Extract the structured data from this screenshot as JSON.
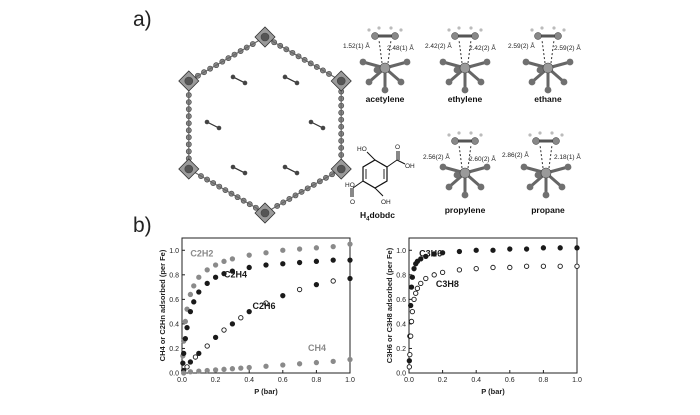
{
  "panel_a": {
    "label": "a)",
    "structures": [
      {
        "name": "acetylene",
        "d1": "1.52(1) Å",
        "d2": "2.48(1) Å"
      },
      {
        "name": "ethylene",
        "d1": "2.42(2) Å",
        "d2": "2.42(2) Å"
      },
      {
        "name": "ethane",
        "d1": "2.59(2) Å",
        "d2": "2.59(2) Å"
      },
      {
        "name": "propylene",
        "d1": "2.56(2) Å",
        "d2": "2.60(2) Å"
      },
      {
        "name": "propane",
        "d1": "2.86(2) Å",
        "d2": "2.18(1) Å"
      }
    ],
    "ligand": {
      "name": "H4dobdc",
      "OH": "HO",
      "OH2": "OH",
      "O": "O",
      "O2": "O"
    }
  },
  "panel_b": {
    "label": "b)"
  },
  "chart_data": [
    {
      "type": "scatter",
      "xlabel": "P (bar)",
      "ylabel": "CH4 or C2Hn adsorbed (per Fe)",
      "xlim": [
        0,
        1.0
      ],
      "ylim": [
        0,
        1.1
      ],
      "xticks": [
        "0.0",
        "0.2",
        "0.4",
        "0.6",
        "0.8",
        "1.0"
      ],
      "yticks": [
        "0.0",
        "0.2",
        "0.4",
        "0.6",
        "0.8",
        "1.0"
      ],
      "series": [
        {
          "name": "C2H2",
          "color": "#8a8a8a",
          "style": "filled",
          "x": [
            0.005,
            0.01,
            0.02,
            0.03,
            0.05,
            0.07,
            0.1,
            0.15,
            0.2,
            0.25,
            0.3,
            0.4,
            0.5,
            0.6,
            0.7,
            0.8,
            0.9,
            1.0
          ],
          "y": [
            0.14,
            0.26,
            0.42,
            0.52,
            0.64,
            0.71,
            0.78,
            0.84,
            0.88,
            0.91,
            0.93,
            0.96,
            0.98,
            1.0,
            1.01,
            1.02,
            1.03,
            1.05
          ]
        },
        {
          "name": "C2H4",
          "color": "#1a1a1a",
          "style": "filled",
          "x": [
            0.005,
            0.01,
            0.02,
            0.03,
            0.05,
            0.07,
            0.1,
            0.15,
            0.2,
            0.25,
            0.3,
            0.4,
            0.5,
            0.6,
            0.7,
            0.8,
            0.9,
            1.0
          ],
          "y": [
            0.08,
            0.16,
            0.28,
            0.37,
            0.5,
            0.58,
            0.66,
            0.73,
            0.78,
            0.81,
            0.83,
            0.86,
            0.88,
            0.89,
            0.9,
            0.91,
            0.92,
            0.92
          ]
        },
        {
          "name": "C2H6",
          "color": "#1a1a1a",
          "style": "mixed",
          "x": [
            0.01,
            0.03,
            0.05,
            0.08,
            0.1,
            0.15,
            0.2,
            0.25,
            0.3,
            0.35,
            0.4,
            0.5,
            0.6,
            0.7,
            0.8,
            0.9,
            1.0
          ],
          "y": [
            0.02,
            0.05,
            0.09,
            0.13,
            0.16,
            0.22,
            0.29,
            0.35,
            0.4,
            0.45,
            0.5,
            0.57,
            0.63,
            0.68,
            0.72,
            0.75,
            0.77
          ]
        },
        {
          "name": "CH4",
          "color": "#8a8a8a",
          "style": "filled",
          "x": [
            0.01,
            0.05,
            0.1,
            0.15,
            0.2,
            0.25,
            0.3,
            0.35,
            0.4,
            0.5,
            0.6,
            0.7,
            0.8,
            0.9,
            1.0
          ],
          "y": [
            0.0,
            0.01,
            0.015,
            0.02,
            0.025,
            0.03,
            0.035,
            0.04,
            0.045,
            0.055,
            0.065,
            0.075,
            0.085,
            0.095,
            0.11
          ]
        }
      ]
    },
    {
      "type": "scatter",
      "xlabel": "P (bar)",
      "ylabel": "C3H6 or C3H8 adsorbed (per Fe)",
      "xlim": [
        0,
        1.0
      ],
      "ylim": [
        0,
        1.1
      ],
      "xticks": [
        "0.0",
        "0.2",
        "0.4",
        "0.6",
        "0.8",
        "1.0"
      ],
      "yticks": [
        "0.0",
        "0.2",
        "0.4",
        "0.6",
        "0.8",
        "1.0"
      ],
      "series": [
        {
          "name": "C3H6",
          "color": "#1a1a1a",
          "style": "filled",
          "x": [
            0.002,
            0.005,
            0.01,
            0.015,
            0.02,
            0.03,
            0.04,
            0.05,
            0.07,
            0.1,
            0.15,
            0.2,
            0.3,
            0.4,
            0.5,
            0.6,
            0.7,
            0.8,
            0.9,
            1.0
          ],
          "y": [
            0.1,
            0.3,
            0.55,
            0.7,
            0.78,
            0.85,
            0.89,
            0.91,
            0.93,
            0.95,
            0.97,
            0.98,
            0.99,
            1.0,
            1.0,
            1.01,
            1.01,
            1.02,
            1.02,
            1.02
          ]
        },
        {
          "name": "C3H8",
          "color": "#1a1a1a",
          "style": "open",
          "x": [
            0.002,
            0.005,
            0.01,
            0.015,
            0.02,
            0.03,
            0.04,
            0.05,
            0.07,
            0.1,
            0.15,
            0.2,
            0.3,
            0.4,
            0.5,
            0.6,
            0.7,
            0.8,
            0.9,
            1.0
          ],
          "y": [
            0.05,
            0.15,
            0.3,
            0.42,
            0.5,
            0.6,
            0.65,
            0.69,
            0.73,
            0.77,
            0.8,
            0.82,
            0.84,
            0.85,
            0.86,
            0.86,
            0.87,
            0.87,
            0.87,
            0.87
          ]
        }
      ]
    }
  ]
}
